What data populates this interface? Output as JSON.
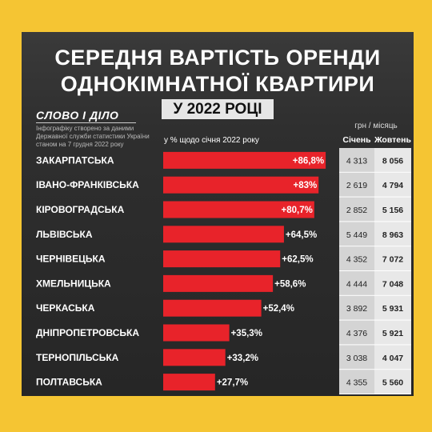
{
  "title_line1": "СЕРЕДНЯ ВАРТІСТЬ ОРЕНДИ",
  "title_line2": "ОДНОКІМНАТНОЇ КВАРТИРИ",
  "subtitle": "У 2022 РОЦІ",
  "logo": "СЛОВО І ДІЛО",
  "source_lines": [
    "Інфографіку створено за даними",
    "Державної служби статистики України",
    "станом на 7 грудня 2022 року"
  ],
  "units": "грн / місяць",
  "pct_header": "у % щодо січня 2022 року",
  "col_jan": "Січень",
  "col_oct": "Жовтень",
  "colors": {
    "background": "#f5c533",
    "card": "#2b2b2b",
    "bar": "#e8232a",
    "cell_jan": "#d4d4d4",
    "cell_oct": "#e8e8e8"
  },
  "chart_data": {
    "type": "bar",
    "orientation": "horizontal",
    "categories": [
      "ЗАКАРПАТСЬКА",
      "ІВАНО-ФРАНКІВСЬКА",
      "КІРОВОГРАДСЬКА",
      "ЛЬВІВСЬКА",
      "ЧЕРНІВЕЦЬКА",
      "ХМЕЛЬНИЦЬКА",
      "ЧЕРКАСЬКА",
      "ДНІПРОПЕТРОВСЬКА",
      "ТЕРНОПІЛЬСЬКА",
      "ПОЛТАВСЬКА"
    ],
    "values": [
      86.8,
      83,
      80.7,
      64.5,
      62.5,
      58.6,
      52.4,
      35.3,
      33.2,
      27.7
    ],
    "value_labels": [
      "+86,8%",
      "+83%",
      "+80,7%",
      "+64,5%",
      "+62,5%",
      "+58,6%",
      "+52,4%",
      "+35,3%",
      "+33,2%",
      "+27,7%"
    ],
    "january": [
      "4 313",
      "2 619",
      "2 852",
      "5 449",
      "4 352",
      "4 444",
      "3 892",
      "4 376",
      "3 038",
      "4 355"
    ],
    "october": [
      "8 056",
      "4 794",
      "5 156",
      "8 963",
      "7 072",
      "7 048",
      "5 931",
      "5 921",
      "4 047",
      "5 560"
    ],
    "xlim": [
      0,
      100
    ]
  }
}
